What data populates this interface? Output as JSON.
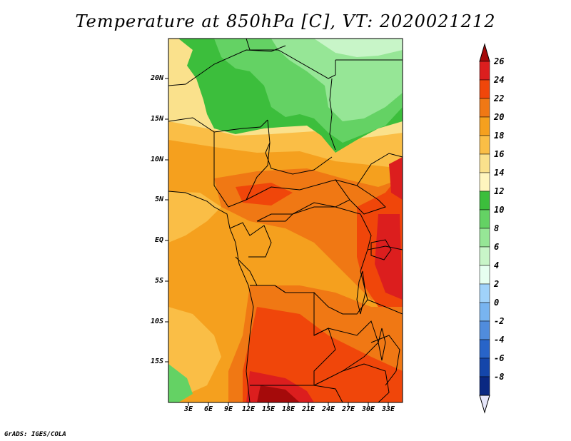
{
  "title": "Temperature at 850hPa [C], VT: 2020021212",
  "credit": "GrADS: IGES/COLA",
  "lat_labels": [
    "20N",
    "15N",
    "10N",
    "5N",
    "EQ",
    "5S",
    "10S",
    "15S"
  ],
  "lon_labels": [
    "3E",
    "6E",
    "9E",
    "12E",
    "15E",
    "18E",
    "21E",
    "24E",
    "27E",
    "30E",
    "33E"
  ],
  "colorbar": {
    "labels": [
      "26",
      "24",
      "22",
      "20",
      "18",
      "16",
      "14",
      "12",
      "10",
      "8",
      "6",
      "4",
      "2",
      "0",
      "-2",
      "-4",
      "-6",
      "-8"
    ],
    "colors": [
      "#a50a0a",
      "#dc1e1e",
      "#f0460a",
      "#f07814",
      "#f5a01e",
      "#fabe46",
      "#fae18c",
      "#fff5be",
      "#3cbe3c",
      "#64d264",
      "#96e696",
      "#c8f5c8",
      "#e6fff0",
      "#a0d2fa",
      "#78b4f0",
      "#508cdc",
      "#2864c8",
      "#1446aa",
      "#0a2882",
      "#e6e6fa"
    ]
  },
  "map_colors": {
    "t26": "#a50a0a",
    "t24": "#dc1e1e",
    "t22": "#f0460a",
    "t20": "#f07814",
    "t18": "#f5a01e",
    "t16": "#fabe46",
    "t14": "#fae18c",
    "t12": "#3cbe3c",
    "t10": "#64d264",
    "t8": "#96e696",
    "t6": "#c8f5c8"
  }
}
